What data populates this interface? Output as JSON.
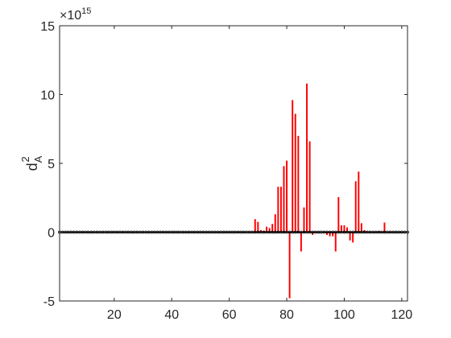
{
  "chart_data": {
    "type": "bar",
    "title": "",
    "xlabel": "",
    "ylabel": "d_A^2",
    "ylabel_main": "d",
    "ylabel_sup": "2",
    "ylabel_sub": "A",
    "y_multiplier_base": "×10",
    "y_multiplier_exp": "15",
    "xlim": [
      1,
      122
    ],
    "ylim": [
      -5,
      15
    ],
    "xticks": [
      20,
      40,
      60,
      80,
      100,
      120
    ],
    "yticks": [
      -5,
      0,
      5,
      10,
      15
    ],
    "xtick_labels": [
      "20",
      "40",
      "60",
      "80",
      "100",
      "120"
    ],
    "ytick_labels": [
      "-5",
      "0",
      "5",
      "10",
      "15"
    ],
    "grid": false,
    "bar_color": "#ff0000",
    "baseline_color": "#000000",
    "series": [
      {
        "x": [
          69,
          70,
          71,
          72,
          73,
          74,
          75,
          76,
          77,
          78,
          79,
          80,
          81,
          82,
          83,
          84,
          85,
          86,
          87,
          88,
          89,
          94,
          95,
          96,
          97,
          98,
          99,
          100,
          101,
          102,
          103,
          104,
          105,
          106,
          107,
          108,
          112,
          114
        ],
        "values": [
          0.95,
          0.75,
          0.15,
          0.1,
          0.4,
          0.3,
          0.6,
          1.3,
          3.3,
          3.3,
          4.8,
          5.2,
          -4.8,
          9.6,
          8.6,
          7.0,
          -1.4,
          1.8,
          10.8,
          6.6,
          -0.2,
          -0.2,
          -0.3,
          -0.3,
          -1.4,
          2.55,
          0.5,
          0.5,
          0.35,
          -0.6,
          -0.75,
          3.7,
          4.4,
          0.65,
          0.15,
          0.05,
          0.05,
          0.7
        ]
      }
    ]
  }
}
